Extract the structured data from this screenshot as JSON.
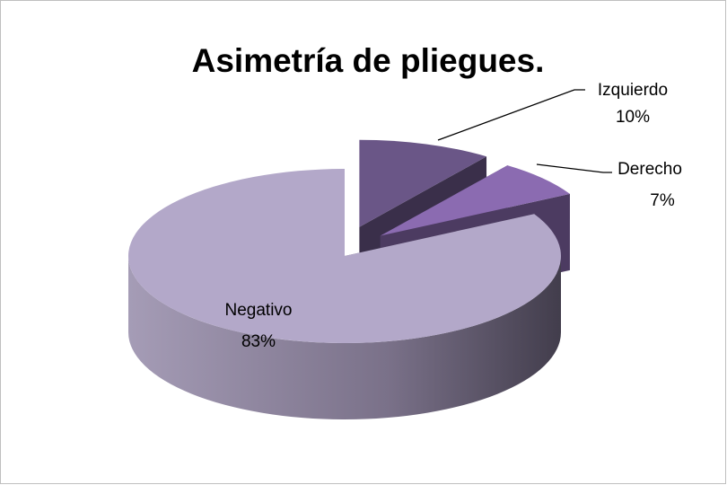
{
  "chart_data": {
    "type": "pie",
    "title": "Asimetría de pliegues.",
    "categories": [
      "Izquierdo",
      "Derecho",
      "Negativo"
    ],
    "values": [
      10,
      7,
      83
    ],
    "value_labels": [
      "10%",
      "7%",
      "83%"
    ],
    "colors": [
      "#6a5687",
      "#8b6bb1",
      "#b3a8c9"
    ]
  }
}
